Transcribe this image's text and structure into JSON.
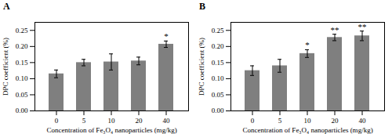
{
  "chart_data": [
    {
      "type": "bar",
      "title": "A",
      "categories": [
        "0",
        "5",
        "10",
        "20",
        "40"
      ],
      "values": [
        0.115,
        0.15,
        0.152,
        0.155,
        0.207
      ],
      "errors": [
        0.012,
        0.01,
        0.025,
        0.012,
        0.01
      ],
      "significance": [
        null,
        null,
        null,
        null,
        "*"
      ],
      "xlabel": "Concentration of Fe₃O₄ nanoparticles (mg/kg)",
      "ylabel": "DPC coefficient (%)",
      "ylim": [
        0,
        0.275
      ],
      "yticks": [
        {
          "value": 0,
          "label": "0.00"
        },
        0.05,
        {
          "value": 0.1,
          "label": "0.10"
        },
        0.15,
        {
          "value": 0.2,
          "label": "0.20"
        },
        0.25
      ],
      "color": "#7f7f7f",
      "grid": false
    },
    {
      "type": "bar",
      "title": "B",
      "categories": [
        "0",
        "5",
        "10",
        "20",
        "40"
      ],
      "values": [
        0.125,
        0.14,
        0.178,
        0.228,
        0.233
      ],
      "errors": [
        0.015,
        0.02,
        0.012,
        0.01,
        0.015
      ],
      "significance": [
        null,
        null,
        "*",
        "**",
        "**"
      ],
      "xlabel": "Concentration of Fe₃O₄ nanoparticles (mg/kg)",
      "ylabel": "DPC coefficient (%)",
      "ylim": [
        0,
        0.275
      ],
      "yticks": [
        {
          "value": 0,
          "label": "0.00"
        },
        0.05,
        {
          "value": 0.1,
          "label": "0.10"
        },
        0.15,
        {
          "value": 0.2,
          "label": "0.20"
        },
        0.25
      ],
      "color": "#7f7f7f",
      "grid": false
    }
  ]
}
